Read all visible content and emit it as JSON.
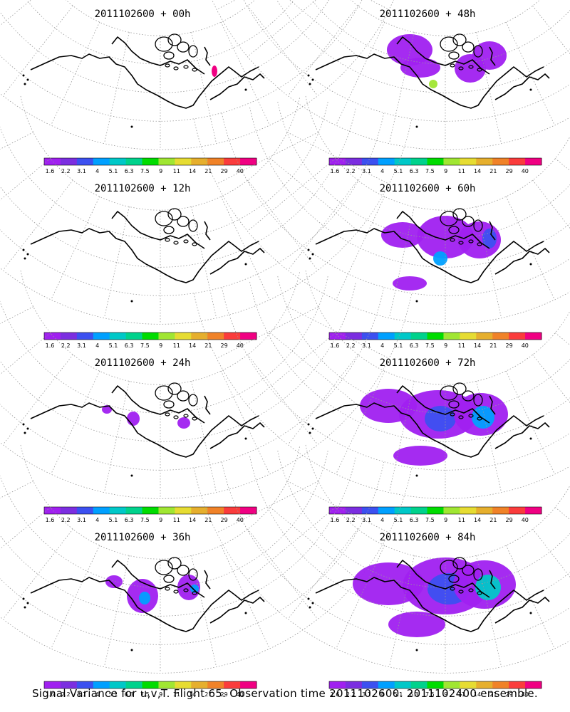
{
  "caption": "Signal Variance for u,v,T. Flight 65. Observation time 2011102600. 2011102400 ensemble.",
  "colorbar": {
    "labels": [
      "1.6",
      "2.2",
      "3.1",
      "4",
      "5.1",
      "6.3",
      "7.5",
      "9",
      "11",
      "14",
      "21",
      "29",
      "40"
    ],
    "colors": [
      "#a020f0",
      "#7b2ee0",
      "#3c50f0",
      "#00a0ff",
      "#00c8c8",
      "#00d28c",
      "#00dc00",
      "#a0e632",
      "#e6dc32",
      "#e6af2d",
      "#f08228",
      "#fa3c3c",
      "#f00082"
    ]
  },
  "colors": {
    "coast": "#000000",
    "grid": "#9a9a9a"
  },
  "panels": [
    {
      "title": "2011102600 + 00h",
      "level": 0
    },
    {
      "title": "2011102600 + 48h",
      "level": 4
    },
    {
      "title": "2011102600 + 12h",
      "level": 0
    },
    {
      "title": "2011102600 + 60h",
      "level": 5
    },
    {
      "title": "2011102600 + 24h",
      "level": 1
    },
    {
      "title": "2011102600 + 72h",
      "level": 6
    },
    {
      "title": "2011102600 + 36h",
      "level": 3
    },
    {
      "title": "2011102600 + 84h",
      "level": 7
    }
  ]
}
